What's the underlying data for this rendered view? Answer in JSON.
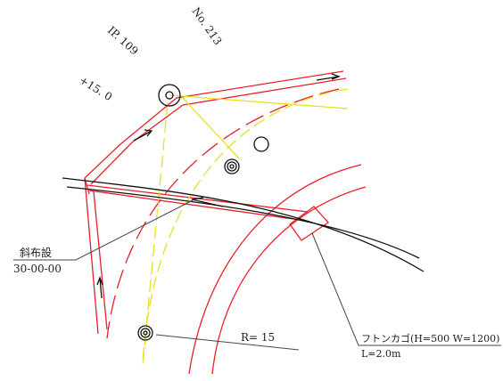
{
  "labels": {
    "ip": "IP. 109",
    "no": "No. 213",
    "station": "+15. 0",
    "slant_title": "斜布設",
    "slant_value": "30-00-00",
    "radius": "R= 15",
    "gabion": "フトンカゴ(H=500 W=1200)",
    "length": "L=2.0m"
  }
}
